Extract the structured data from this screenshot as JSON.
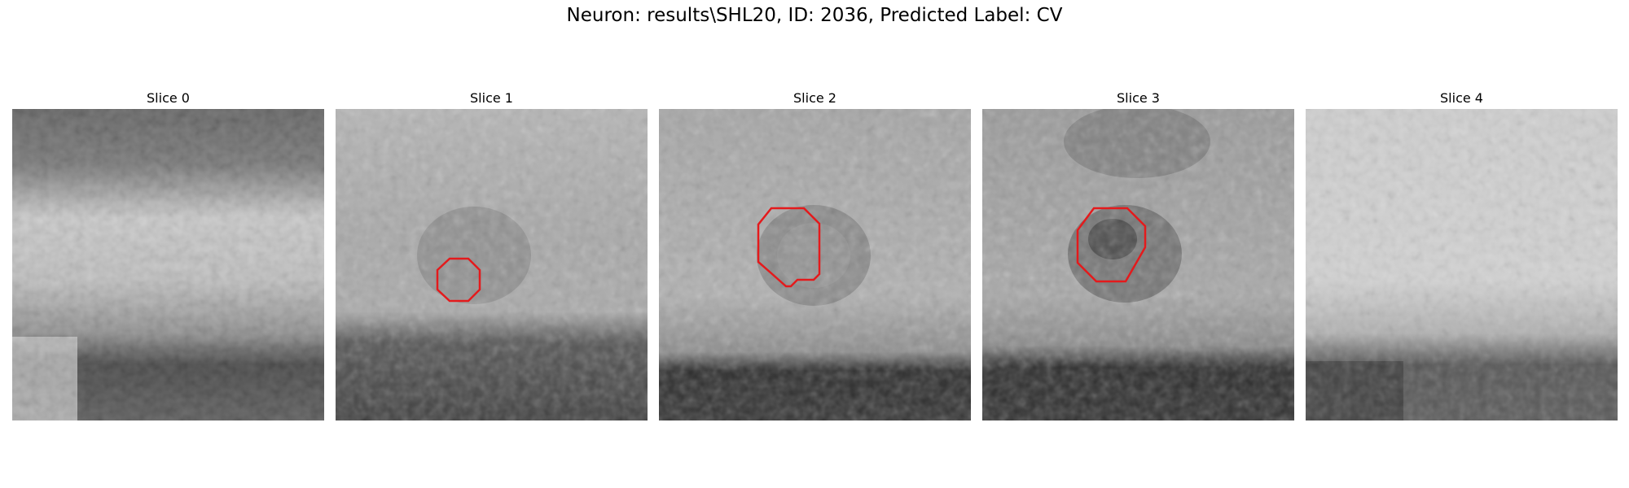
{
  "figure": {
    "title": "Neuron: results\\SHL20, ID: 2036, Predicted Label: CV"
  },
  "slices": [
    {
      "title": "Slice 0",
      "has_contour": false
    },
    {
      "title": "Slice 1",
      "has_contour": true
    },
    {
      "title": "Slice 2",
      "has_contour": true
    },
    {
      "title": "Slice 3",
      "has_contour": true
    },
    {
      "title": "Slice 4",
      "has_contour": false
    }
  ],
  "colors": {
    "contour": "#e41a1c",
    "background": "#ffffff"
  }
}
